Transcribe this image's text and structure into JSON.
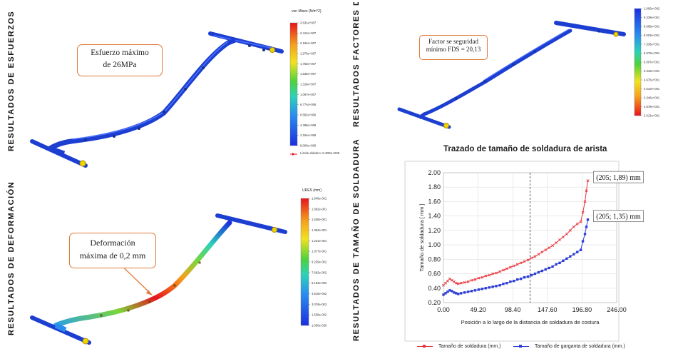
{
  "labels": {
    "esfuerzos": "RESULTADOS DE ESFUERZOS",
    "factores": "RESULTADOS FACTORES DE SEGURIDAD MINIMO",
    "deformacion": "RESULTADOS DE DEFORMACIÓN",
    "tamano": "RESULTADOS DE TAMAÑO DE SOLDADURA"
  },
  "stress_panel": {
    "callout_line1": "Esfuerzo máximo",
    "callout_line2": "de 26MPa",
    "legend_title": "von Mises (N/m^2)",
    "ticks": [
      "2.631e+007",
      "2.412e+007",
      "2.194e+007",
      "1.975e+007",
      "1.755e+007",
      "1.536e+007",
      "1.316e+007",
      "1.097e+007",
      "8.774e+006",
      "6.582e+006",
      "4.388e+006",
      "2.194e+006",
      "8.000e+000"
    ],
    "yield_label": "Límite elástico: 5.300e+008"
  },
  "fos_panel": {
    "callout_line1": "Factor se seguridad",
    "callout_line2": "mínimo FDS = 20,13",
    "ticks": [
      "1.000e+002",
      "9.339e+001",
      "8.669e+001",
      "8.003e+001",
      "7.336e+001",
      "6.672e+001",
      "6.007e+001",
      "5.342e+001",
      "4.675e+001",
      "4.010e+001",
      "3.346e+001",
      "2.679e+001",
      "2.013e+001"
    ]
  },
  "deform_panel": {
    "callout_line1": "Deformación",
    "callout_line2": "máxima de 0,2 mm",
    "legend_title": "URES (mm)",
    "ticks": [
      "1.846e-001",
      "1.692e-001",
      "1.538e-001",
      "1.384e-001",
      "1.231e-001",
      "1.077e-001",
      "9.229e-002",
      "7.692e-002",
      "6.153e-002",
      "4.615e-002",
      "3.076e-002",
      "1.538e-002",
      "1.000e-030"
    ]
  },
  "weld_chart": {
    "title": "Trazado de tamaño de soldadura de arista",
    "annotation_top": "(205; 1,89) mm",
    "annotation_bottom": "(205; 1,35) mm",
    "legend_red": "Tamaño de soldadura (mm.)",
    "legend_blue": "Tamaño de garganta de soldadura (mm.)"
  },
  "chart_data": {
    "type": "line",
    "title": "Trazado de tamaño de soldadura de arista",
    "xlabel": "Posición a lo largo de la distancia de soldadura de costura",
    "ylabel": "Tamaño de soldadura [ mm ]",
    "xlim": [
      0,
      246
    ],
    "ylim": [
      0.2,
      2.0
    ],
    "xticks": [
      "0.00",
      "49.20",
      "98.40",
      "147.60",
      "196.80",
      "246.00"
    ],
    "yticks": [
      "0.20",
      "0.40",
      "0.60",
      "0.80",
      "1.00",
      "1.20",
      "1.40",
      "1.60",
      "1.80",
      "2.00"
    ],
    "series": [
      {
        "name": "Tamaño de soldadura (mm.)",
        "color": "#e8333a",
        "x": [
          0,
          3,
          6,
          9,
          12,
          15,
          18,
          21,
          25,
          30,
          35,
          40,
          45,
          50,
          55,
          60,
          65,
          70,
          75,
          80,
          85,
          90,
          95,
          100,
          105,
          110,
          115,
          120,
          125,
          130,
          135,
          140,
          145,
          150,
          155,
          160,
          165,
          170,
          175,
          180,
          185,
          190,
          195,
          198,
          201,
          203,
          205
        ],
        "y": [
          0.44,
          0.47,
          0.5,
          0.53,
          0.51,
          0.49,
          0.47,
          0.46,
          0.47,
          0.48,
          0.49,
          0.51,
          0.52,
          0.54,
          0.55,
          0.57,
          0.58,
          0.6,
          0.61,
          0.63,
          0.65,
          0.67,
          0.69,
          0.71,
          0.73,
          0.75,
          0.77,
          0.79,
          0.82,
          0.84,
          0.87,
          0.9,
          0.93,
          0.96,
          0.99,
          1.03,
          1.07,
          1.11,
          1.15,
          1.2,
          1.25,
          1.29,
          1.32,
          1.45,
          1.6,
          1.75,
          1.89
        ]
      },
      {
        "name": "Tamaño de garganta de soldadura (mm.)",
        "color": "#2f3fd6",
        "x": [
          0,
          3,
          6,
          9,
          12,
          15,
          18,
          21,
          25,
          30,
          35,
          40,
          45,
          50,
          55,
          60,
          65,
          70,
          75,
          80,
          85,
          90,
          95,
          100,
          105,
          110,
          115,
          120,
          125,
          130,
          135,
          140,
          145,
          150,
          155,
          160,
          165,
          170,
          175,
          180,
          185,
          190,
          195,
          198,
          201,
          203,
          205
        ],
        "y": [
          0.31,
          0.33,
          0.35,
          0.37,
          0.36,
          0.34,
          0.33,
          0.32,
          0.33,
          0.34,
          0.35,
          0.36,
          0.37,
          0.38,
          0.39,
          0.4,
          0.41,
          0.42,
          0.43,
          0.44,
          0.46,
          0.47,
          0.49,
          0.5,
          0.52,
          0.53,
          0.55,
          0.56,
          0.58,
          0.6,
          0.62,
          0.64,
          0.66,
          0.68,
          0.7,
          0.73,
          0.75,
          0.78,
          0.81,
          0.84,
          0.87,
          0.9,
          0.93,
          1.05,
          1.15,
          1.25,
          1.35
        ]
      }
    ]
  }
}
